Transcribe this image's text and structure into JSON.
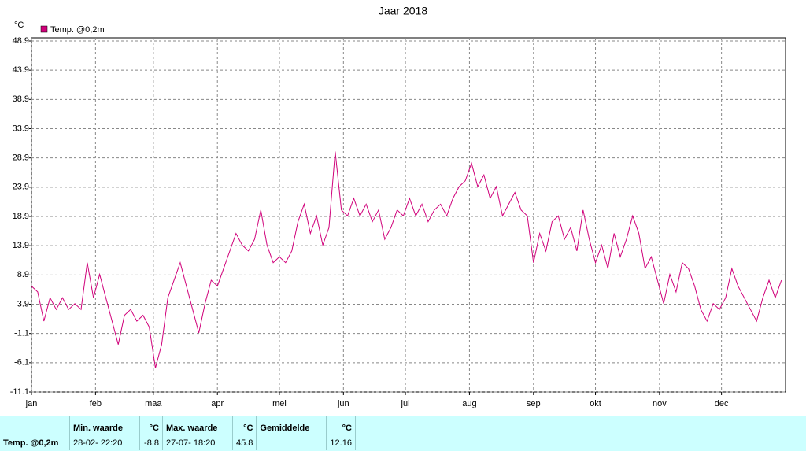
{
  "chart_data": {
    "type": "line",
    "title": "Jaar 2018",
    "y_unit": "°C",
    "xlim": [
      0,
      365
    ],
    "xticks": [
      {
        "value": 0,
        "label": "jan"
      },
      {
        "value": 31,
        "label": "feb"
      },
      {
        "value": 59,
        "label": "maa"
      },
      {
        "value": 90,
        "label": "apr"
      },
      {
        "value": 120,
        "label": "mei"
      },
      {
        "value": 151,
        "label": "jun"
      },
      {
        "value": 181,
        "label": "jul"
      },
      {
        "value": 212,
        "label": "aug"
      },
      {
        "value": 243,
        "label": "sep"
      },
      {
        "value": 273,
        "label": "okt"
      },
      {
        "value": 304,
        "label": "nov"
      },
      {
        "value": 334,
        "label": "dec"
      }
    ],
    "ylim": [
      -11.1,
      48.9
    ],
    "yticks": [
      -11.1,
      -6.1,
      -1.1,
      3.9,
      8.9,
      13.9,
      18.9,
      23.9,
      28.9,
      33.9,
      38.9,
      43.9,
      48.9
    ],
    "grid": true,
    "reference_line": 0,
    "reference_color": "#cc0033",
    "x": [
      0,
      3,
      6,
      9,
      12,
      15,
      18,
      21,
      24,
      27,
      30,
      33,
      36,
      39,
      42,
      45,
      48,
      51,
      54,
      57,
      60,
      63,
      66,
      69,
      72,
      75,
      78,
      81,
      84,
      87,
      90,
      93,
      96,
      99,
      102,
      105,
      108,
      111,
      114,
      117,
      120,
      123,
      126,
      129,
      132,
      135,
      138,
      141,
      144,
      147,
      150,
      153,
      156,
      159,
      162,
      165,
      168,
      171,
      174,
      177,
      180,
      183,
      186,
      189,
      192,
      195,
      198,
      201,
      204,
      207,
      210,
      213,
      216,
      219,
      222,
      225,
      228,
      231,
      234,
      237,
      240,
      243,
      246,
      249,
      252,
      255,
      258,
      261,
      264,
      267,
      270,
      273,
      276,
      279,
      282,
      285,
      288,
      291,
      294,
      297,
      300,
      303,
      306,
      309,
      312,
      315,
      318,
      321,
      324,
      327,
      330,
      333,
      336,
      339,
      342,
      345,
      348,
      351,
      354,
      357,
      360,
      363
    ],
    "series": [
      {
        "name": "Temp. @0,2m",
        "color": "#d0007a",
        "values": [
          7,
          6,
          1,
          5,
          3,
          5,
          3,
          4,
          3,
          11,
          5,
          9,
          5,
          1,
          -3,
          2,
          3,
          1,
          2,
          0,
          -7,
          -3,
          5,
          8,
          11,
          7,
          3,
          -1,
          4,
          8,
          7,
          10,
          13,
          16,
          14,
          13,
          15,
          20,
          14,
          11,
          12,
          11,
          13,
          18,
          21,
          16,
          19,
          14,
          17,
          30,
          20,
          19,
          22,
          19,
          21,
          18,
          20,
          15,
          17,
          20,
          19,
          22,
          19,
          21,
          18,
          20,
          21,
          19,
          22,
          24,
          25,
          28,
          24,
          26,
          22,
          24,
          19,
          21,
          23,
          20,
          19,
          11,
          16,
          13,
          18,
          19,
          15,
          17,
          13,
          20,
          15,
          11,
          14,
          10,
          16,
          12,
          15,
          19,
          16,
          10,
          12,
          8,
          4,
          9,
          6,
          11,
          10,
          7,
          3,
          1,
          4,
          3,
          5,
          10,
          7,
          5,
          3,
          1,
          5,
          8,
          5,
          8
        ]
      }
    ]
  },
  "table": {
    "header": [
      "Min. waarde",
      "°C",
      "Max. waarde",
      "°C",
      "Gemiddelde",
      "°C"
    ],
    "rows": [
      [
        "Temp. @0,2m",
        "28-02- 22:20",
        "-8.8",
        "27-07- 18:20",
        "45.8",
        "12.16"
      ]
    ]
  }
}
